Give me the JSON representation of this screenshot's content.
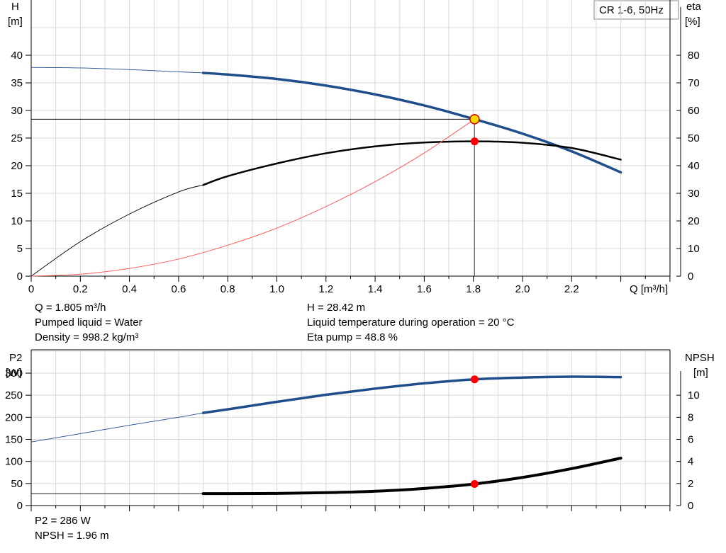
{
  "legend_box": "CR 1-6, 50Hz",
  "chart_data": [
    {
      "type": "line",
      "panel": "top",
      "y_left_label": [
        "H",
        "[m]"
      ],
      "y_right_label": [
        "eta",
        "[%]"
      ],
      "x_label": "Q [m³/h]",
      "xlim": [
        0,
        2.6
      ],
      "ylim_left": [
        0,
        40
      ],
      "ylim_right": [
        0,
        80
      ],
      "x_ticks": [
        "0",
        "0.2",
        "0.4",
        "0.6",
        "0.8",
        "1.0",
        "1.2",
        "1.4",
        "1.6",
        "1.8",
        "2.0",
        "2.2"
      ],
      "y_left_ticks": [
        "0",
        "5",
        "10",
        "15",
        "20",
        "25",
        "30",
        "35",
        "40"
      ],
      "y_right_ticks": [
        "0",
        "10",
        "20",
        "30",
        "40",
        "50",
        "60",
        "70",
        "80"
      ],
      "grid": true,
      "series": [
        {
          "axis": "left",
          "color": "#1f4e8c",
          "x": [
            0,
            0.2,
            0.4,
            0.6,
            0.7,
            0.8,
            1.0,
            1.2,
            1.4,
            1.6,
            1.805,
            2.0,
            2.2,
            2.4
          ],
          "y": [
            37.8,
            37.7,
            37.4,
            37.0,
            36.8,
            36.5,
            35.7,
            34.5,
            32.9,
            30.9,
            28.42,
            25.8,
            22.6,
            18.8
          ],
          "solid_from": 0.7
        },
        {
          "axis": "right",
          "color": "#000000",
          "x": [
            0,
            0.2,
            0.4,
            0.6,
            0.7,
            0.8,
            1.0,
            1.2,
            1.4,
            1.6,
            1.805,
            2.0,
            2.2,
            2.4
          ],
          "y": [
            0,
            12.5,
            22.5,
            30.5,
            33.0,
            36.2,
            40.8,
            44.5,
            47.0,
            48.4,
            48.8,
            48.3,
            46.4,
            42.2
          ],
          "solid_from": 0.7
        },
        {
          "axis": "left",
          "color": "#ff5a5a",
          "x": [
            0,
            0.2,
            0.4,
            0.6,
            0.8,
            1.0,
            1.2,
            1.4,
            1.6,
            1.805
          ],
          "y": [
            0,
            0.35,
            1.4,
            3.1,
            5.6,
            8.7,
            12.6,
            17.1,
            22.3,
            28.42
          ]
        }
      ],
      "operating_point": {
        "x": 1.805,
        "H": 28.42,
        "eta": 48.8
      }
    },
    {
      "type": "line",
      "panel": "bottom",
      "y_left_label": [
        "P2",
        "[W]"
      ],
      "y_right_label": [
        "NPSH",
        "[m]"
      ],
      "xlim": [
        0,
        2.6
      ],
      "ylim_left": [
        0,
        300
      ],
      "ylim_right": [
        0,
        12
      ],
      "y_left_ticks": [
        "0",
        "50",
        "100",
        "150",
        "200",
        "250",
        "300"
      ],
      "y_right_ticks": [
        "0",
        "2",
        "4",
        "6",
        "8",
        "10"
      ],
      "grid": true,
      "series": [
        {
          "axis": "left",
          "color": "#1f4e8c",
          "x": [
            0,
            0.2,
            0.4,
            0.6,
            0.7,
            0.8,
            1.0,
            1.2,
            1.4,
            1.6,
            1.805,
            2.0,
            2.2,
            2.4
          ],
          "y": [
            144,
            163,
            182,
            200,
            210,
            218,
            235,
            251,
            265,
            277,
            286,
            290,
            292,
            291
          ],
          "solid_from": 0.7
        },
        {
          "axis": "right",
          "color": "#000000",
          "x": [
            0,
            0.2,
            0.4,
            0.6,
            0.7,
            0.8,
            1.0,
            1.2,
            1.4,
            1.6,
            1.805,
            2.0,
            2.2,
            2.4
          ],
          "y": [
            1.08,
            1.08,
            1.08,
            1.08,
            1.08,
            1.08,
            1.1,
            1.17,
            1.3,
            1.55,
            1.96,
            2.55,
            3.35,
            4.3
          ],
          "solid_from": 0.7
        }
      ],
      "operating_point": {
        "x": 1.805,
        "P2": 286,
        "NPSH": 1.96
      }
    }
  ],
  "info": {
    "q": "Q = 1.805 m³/h",
    "liquid": "Pumped liquid = Water",
    "density": "Density = 998.2 kg/m³",
    "h": "H = 28.42 m",
    "temp": "Liquid temperature during operation = 20 °C",
    "eta": "Eta pump = 48.8 %",
    "p2": "P2 = 286 W",
    "npsh": "NPSH = 1.96 m"
  }
}
